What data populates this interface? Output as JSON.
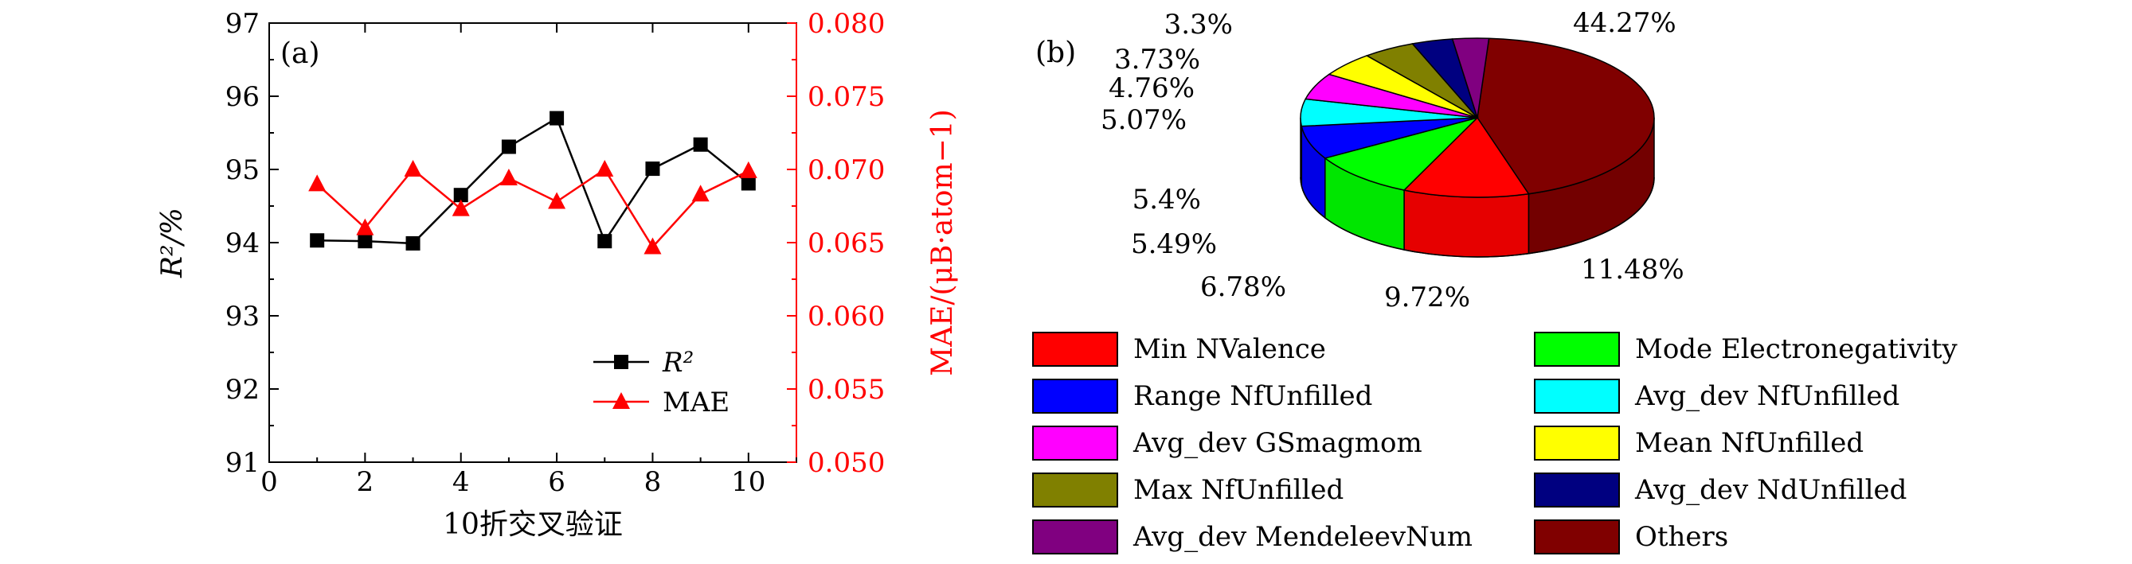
{
  "chart_data": [
    {
      "type": "line",
      "panel_label": "(a)",
      "xlabel": "10折交叉验证",
      "ylabel_left": "R²/%",
      "ylabel_right": "MAE/(μB·atom−1)",
      "xlim": [
        0,
        11
      ],
      "ylim_left": [
        91,
        97
      ],
      "ylim_right": [
        0.05,
        0.08
      ],
      "xticks": [
        "0",
        "2",
        "4",
        "6",
        "8",
        "10"
      ],
      "yticks_left": [
        "91",
        "92",
        "93",
        "94",
        "95",
        "96",
        "97"
      ],
      "yticks_right": [
        "0.050",
        "0.055",
        "0.060",
        "0.065",
        "0.070",
        "0.075",
        "0.080"
      ],
      "legend_position": "lower-right",
      "series": [
        {
          "name": "R²",
          "axis": "left",
          "color": "#000000",
          "marker": "square",
          "x": [
            1,
            2,
            3,
            4,
            5,
            6,
            7,
            8,
            9,
            10
          ],
          "values": [
            94.03,
            94.02,
            93.99,
            94.65,
            95.31,
            95.7,
            94.02,
            95.01,
            95.34,
            94.81
          ]
        },
        {
          "name": "MAE",
          "axis": "right",
          "color": "#ff0000",
          "marker": "triangle",
          "x": [
            1,
            2,
            3,
            4,
            5,
            6,
            7,
            8,
            9,
            10
          ],
          "values": [
            0.069,
            0.066,
            0.07,
            0.0673,
            0.0694,
            0.0678,
            0.07,
            0.0647,
            0.0683,
            0.0699
          ]
        }
      ]
    },
    {
      "type": "pie",
      "panel_label": "(b)",
      "style": "3d",
      "slices": [
        {
          "label": "Others",
          "value": 44.27,
          "pct_label": "44.27%",
          "color": "#800000"
        },
        {
          "label": "Min NValence",
          "value": 11.48,
          "pct_label": "11.48%",
          "color": "#ff0000"
        },
        {
          "label": "Mode Electronegativity",
          "value": 9.72,
          "pct_label": "9.72%",
          "color": "#00ff00"
        },
        {
          "label": "Range NfUnfilled",
          "value": 6.78,
          "pct_label": "6.78%",
          "color": "#0000ff"
        },
        {
          "label": "Avg_dev NfUnfilled",
          "value": 5.49,
          "pct_label": "5.49%",
          "color": "#00ffff"
        },
        {
          "label": "Avg_dev GSmagmom",
          "value": 5.4,
          "pct_label": "5.4%",
          "color": "#ff00ff"
        },
        {
          "label": "Mean NfUnfilled",
          "value": 5.07,
          "pct_label": "5.07%",
          "color": "#ffff00"
        },
        {
          "label": "Max NfUnfilled",
          "value": 4.76,
          "pct_label": "4.76%",
          "color": "#808000"
        },
        {
          "label": "Avg_dev NdUnfilled",
          "value": 3.73,
          "pct_label": "3.73%",
          "color": "#000080"
        },
        {
          "label": "Avg_dev MendeleevNum",
          "value": 3.3,
          "pct_label": "3.3%",
          "color": "#800080"
        }
      ],
      "legend": [
        {
          "label": "Min NValence",
          "color": "#ff0000"
        },
        {
          "label": "Mode Electronegativity",
          "color": "#00ff00"
        },
        {
          "label": "Range NfUnfilled",
          "color": "#0000ff"
        },
        {
          "label": "Avg_dev NfUnfilled",
          "color": "#00ffff"
        },
        {
          "label": "Avg_dev GSmagmom",
          "color": "#ff00ff"
        },
        {
          "label": "Mean NfUnfilled",
          "color": "#ffff00"
        },
        {
          "label": "Max NfUnfilled",
          "color": "#808000"
        },
        {
          "label": "Avg_dev NdUnfilled",
          "color": "#000080"
        },
        {
          "label": "Avg_dev MendeleevNum",
          "color": "#800080"
        },
        {
          "label": "Others",
          "color": "#800000"
        }
      ]
    }
  ]
}
